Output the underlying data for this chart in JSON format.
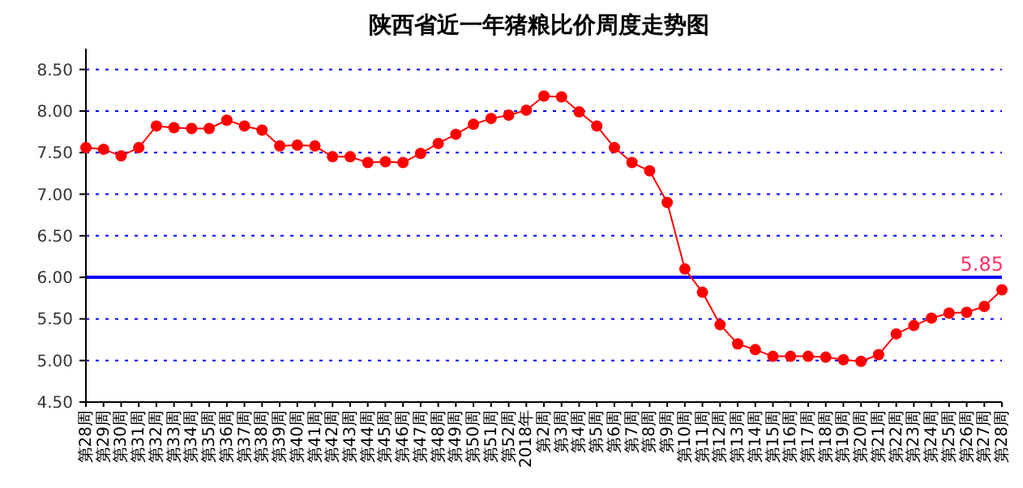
{
  "chart_data": {
    "type": "line",
    "title": "陕西省近一年猪粮比价周度走势图",
    "categories": [
      "第28周",
      "第29周",
      "第30周",
      "第31周",
      "第32周",
      "第33周",
      "第34周",
      "第35周",
      "第36周",
      "第37周",
      "第38周",
      "第39周",
      "第40周",
      "第41周",
      "第42周",
      "第43周",
      "第44周",
      "第45周",
      "第46周",
      "第47周",
      "第48周",
      "第49周",
      "第50周",
      "第51周",
      "第52周",
      "2018年",
      "第2周",
      "第3周",
      "第4周",
      "第5周",
      "第6周",
      "第7周",
      "第8周",
      "第9周",
      "第10周",
      "第11周",
      "第12周",
      "第13周",
      "第14周",
      "第15周",
      "第16周",
      "第17周",
      "第18周",
      "第19周",
      "第20周",
      "第21周",
      "第22周",
      "第23周",
      "第24周",
      "第25周",
      "第26周",
      "第27周",
      "第28周"
    ],
    "series": [
      {
        "color": "#ff0000",
        "values": [
          7.56,
          7.54,
          7.46,
          7.56,
          7.82,
          7.8,
          7.79,
          7.79,
          7.89,
          7.82,
          7.77,
          7.58,
          7.59,
          7.58,
          7.45,
          7.45,
          7.38,
          7.39,
          7.38,
          7.49,
          7.61,
          7.72,
          7.84,
          7.91,
          7.95,
          8.01,
          8.18,
          8.17,
          7.99,
          7.82,
          7.56,
          7.38,
          7.28,
          6.9,
          6.1,
          5.82,
          5.43,
          5.2,
          5.13,
          5.05,
          5.05,
          5.05,
          5.04,
          5.01,
          4.99,
          5.07,
          5.32,
          5.42,
          5.51,
          5.57,
          5.58,
          5.65,
          5.85
        ],
        "value_labels": [
          null,
          null,
          null,
          null,
          null,
          null,
          null,
          null,
          null,
          null,
          null,
          null,
          null,
          null,
          null,
          null,
          null,
          null,
          null,
          null,
          null,
          null,
          null,
          null,
          null,
          null,
          null,
          null,
          null,
          null,
          null,
          null,
          null,
          null,
          null,
          null,
          null,
          null,
          null,
          null,
          null,
          null,
          null,
          null,
          null,
          null,
          null,
          null,
          null,
          null,
          null,
          null,
          "5.85"
        ]
      }
    ],
    "ylim": [
      4.5,
      8.75
    ],
    "yticks": [
      {
        "value": 4.5,
        "label": "4.50"
      },
      {
        "value": 5,
        "label": "5.00"
      },
      {
        "value": 5.5,
        "label": "5.50"
      },
      {
        "value": 6,
        "label": "6.00"
      },
      {
        "value": 6.5,
        "label": "6.50"
      },
      {
        "value": 7,
        "label": "7.00"
      },
      {
        "value": 7.5,
        "label": "7.50"
      },
      {
        "value": 8,
        "label": "8.00"
      },
      {
        "value": 8.5,
        "label": "8.50"
      }
    ],
    "grid": "y",
    "marker": "circle",
    "line_style": "solid",
    "ref_lines": [
      {
        "axis": "y",
        "value": 6,
        "color": "#0000ff",
        "line_style": "solid"
      }
    ]
  }
}
